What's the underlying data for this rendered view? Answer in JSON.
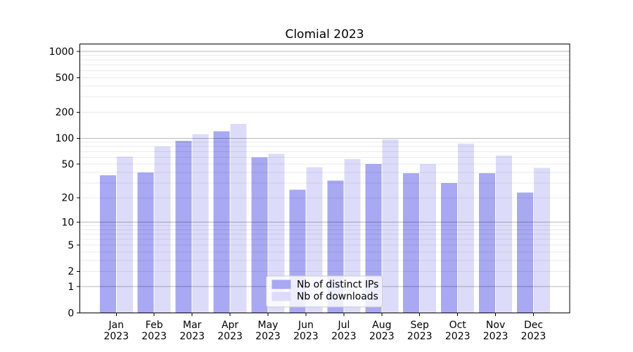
{
  "title": "Clomial 2023",
  "chart_data": {
    "type": "bar",
    "title": "Clomial 2023",
    "year": "2023",
    "categories": [
      "Jan",
      "Feb",
      "Mar",
      "Apr",
      "May",
      "Jun",
      "Jul",
      "Aug",
      "Sep",
      "Oct",
      "Nov",
      "Dec"
    ],
    "series": [
      {
        "name": "Nb of distinct IPs",
        "color": "#a8a8f3",
        "values": [
          37,
          40,
          93,
          120,
          60,
          25,
          32,
          50,
          39,
          30,
          39,
          23
        ]
      },
      {
        "name": "Nb of downloads",
        "color": "#dcdcfa",
        "values": [
          61,
          80,
          112,
          147,
          66,
          46,
          57,
          97,
          50,
          87,
          63,
          45
        ]
      }
    ],
    "y_axis": {
      "scale": "log1p",
      "ticks": [
        0,
        1,
        2,
        5,
        10,
        20,
        50,
        100,
        200,
        500,
        1000
      ],
      "major_gridlines": [
        1,
        10,
        100,
        1000
      ],
      "ylim": [
        0,
        1220
      ]
    },
    "x_axis": {
      "label_line2": "2023"
    },
    "legend": {
      "position": "lower center"
    },
    "grid": true,
    "colors": {
      "major_grid": "rgba(0,0,0,0.27)",
      "minor_grid": "rgba(0,0,0,0.08)",
      "axis": "#000000",
      "legend_border": "#cccccc",
      "background": "#ffffff"
    }
  }
}
